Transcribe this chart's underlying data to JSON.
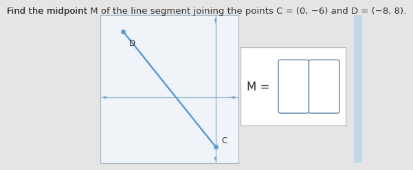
{
  "title_part1": "Find the midpoint ",
  "title_M": "M",
  "title_part2": " of the line segment joining the points ",
  "title_C": "C",
  "title_eq_C": " = (0, −6) and ",
  "title_D": "D",
  "title_eq_D": " = (−8, 8).",
  "title_fontsize": 9.5,
  "background_color": "#e5e5e5",
  "C": [
    0,
    -6
  ],
  "D": [
    -8,
    8
  ],
  "grid_xlim": [
    -10,
    2
  ],
  "grid_ylim": [
    -8,
    10
  ],
  "line_color": "#5b9bd5",
  "point_color": "#5b9bd5",
  "point_size": 5,
  "label_fontsize": 8.5,
  "answer_fontsize": 12,
  "box_color": "#ffffff",
  "box_edge_color": "#bbbbbb",
  "axis_color": "#8ab0cc",
  "plot_bg": "#f0f4f8",
  "plot_border": "#aabbc8",
  "right_strip_color": "#c0d8e8"
}
